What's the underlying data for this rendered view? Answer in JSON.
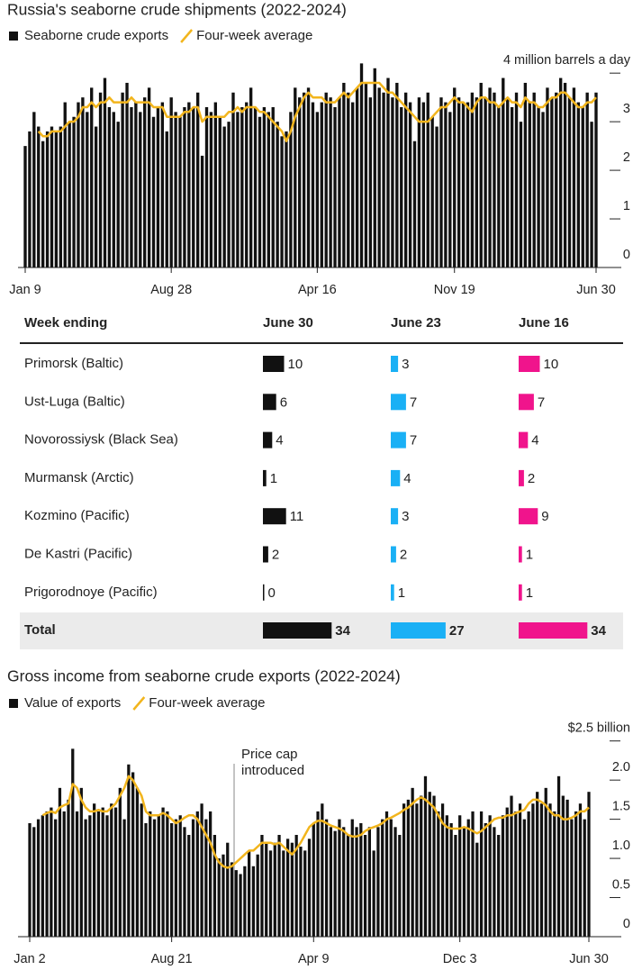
{
  "chart_data": [
    {
      "type": "bar",
      "title": "Russia's seaborne crude shipments (2022-2024)",
      "categories": [
        "Jan 9",
        null,
        null,
        null,
        null,
        null,
        null,
        null,
        null,
        null,
        null,
        null,
        null,
        null,
        null,
        null,
        null,
        null,
        null,
        null,
        null,
        null,
        null,
        null,
        null,
        null,
        null,
        null,
        null,
        null,
        null,
        null,
        null,
        "Aug 28",
        null,
        null,
        null,
        null,
        null,
        null,
        null,
        null,
        null,
        null,
        null,
        null,
        null,
        null,
        null,
        null,
        null,
        null,
        null,
        null,
        null,
        null,
        null,
        null,
        null,
        null,
        null,
        null,
        null,
        null,
        null,
        null,
        "Apr 16",
        null,
        null,
        null,
        null,
        null,
        null,
        null,
        null,
        null,
        null,
        null,
        null,
        null,
        null,
        null,
        null,
        null,
        null,
        null,
        null,
        null,
        null,
        null,
        null,
        null,
        null,
        null,
        null,
        null,
        null,
        "Nov 19",
        null,
        null,
        null,
        null,
        null,
        null,
        null,
        null,
        null,
        null,
        null,
        null,
        null,
        null,
        null,
        null,
        null,
        null,
        null,
        null,
        null,
        null,
        null,
        null,
        null,
        null,
        null,
        null,
        null,
        null,
        null,
        "Jun 30"
      ],
      "series": [
        {
          "name": "Seaborne crude exports",
          "type": "bar",
          "color": "#111111",
          "values": [
            2.5,
            2.8,
            3.2,
            2.9,
            2.6,
            2.8,
            2.9,
            2.8,
            2.9,
            3.4,
            3.0,
            3.1,
            3.4,
            3.5,
            3.2,
            3.7,
            2.9,
            3.6,
            3.9,
            3.3,
            3.2,
            3.0,
            3.6,
            3.8,
            3.3,
            3.4,
            3.2,
            3.5,
            3.7,
            3.1,
            3.3,
            3.4,
            2.8,
            3.5,
            3.2,
            3.1,
            3.3,
            3.4,
            3.3,
            3.6,
            2.3,
            3.3,
            3.2,
            3.4,
            3.1,
            2.9,
            3.0,
            3.6,
            3.2,
            3.3,
            3.4,
            3.7,
            3.3,
            3.1,
            3.3,
            3.2,
            3.3,
            3.0,
            2.7,
            2.8,
            3.2,
            3.7,
            3.5,
            3.6,
            3.7,
            3.4,
            3.2,
            3.4,
            3.6,
            3.5,
            3.3,
            3.5,
            3.8,
            3.6,
            3.4,
            3.7,
            4.2,
            3.8,
            3.5,
            4.1,
            3.7,
            3.6,
            3.9,
            3.5,
            3.8,
            3.3,
            3.6,
            3.4,
            2.6,
            3.5,
            3.4,
            3.6,
            3.1,
            2.9,
            3.5,
            3.4,
            3.2,
            3.7,
            3.5,
            3.4,
            3.4,
            3.6,
            3.5,
            3.8,
            3.5,
            3.7,
            3.6,
            3.3,
            3.9,
            3.5,
            3.3,
            3.6,
            3.0,
            3.8,
            3.4,
            3.6,
            3.3,
            3.2,
            3.7,
            3.5,
            3.6,
            3.9,
            3.8,
            3.5,
            3.7,
            3.4,
            3.3,
            3.6,
            3.0,
            3.6
          ]
        },
        {
          "name": "Four-week average",
          "type": "line",
          "color": "#f2b51d",
          "values": [
            null,
            null,
            null,
            2.8,
            2.7,
            2.7,
            2.8,
            2.8,
            2.8,
            2.9,
            3.0,
            3.0,
            3.1,
            3.3,
            3.3,
            3.4,
            3.3,
            3.4,
            3.4,
            3.5,
            3.4,
            3.4,
            3.4,
            3.4,
            3.5,
            3.4,
            3.4,
            3.4,
            3.4,
            3.3,
            3.3,
            3.3,
            3.1,
            3.1,
            3.1,
            3.1,
            3.2,
            3.2,
            3.3,
            3.3,
            3.0,
            3.1,
            3.1,
            3.1,
            3.1,
            3.1,
            3.2,
            3.2,
            3.3,
            3.2,
            3.3,
            3.3,
            3.3,
            3.2,
            3.2,
            3.1,
            3.0,
            2.9,
            2.8,
            2.6,
            2.8,
            3.1,
            3.3,
            3.5,
            3.6,
            3.5,
            3.5,
            3.5,
            3.4,
            3.4,
            3.4,
            3.5,
            3.6,
            3.5,
            3.6,
            3.7,
            3.8,
            3.8,
            3.8,
            3.8,
            3.8,
            3.7,
            3.6,
            3.6,
            3.5,
            3.4,
            3.3,
            3.2,
            3.1,
            3.0,
            3.0,
            3.0,
            3.1,
            3.2,
            3.3,
            3.3,
            3.4,
            3.5,
            3.4,
            3.4,
            3.3,
            3.2,
            3.4,
            3.5,
            3.5,
            3.4,
            3.4,
            3.3,
            3.4,
            3.5,
            3.4,
            3.4,
            3.3,
            3.5,
            3.4,
            3.4,
            3.3,
            3.3,
            3.4,
            3.5,
            3.5,
            3.6,
            3.6,
            3.5,
            3.4,
            3.3,
            3.3,
            3.4,
            3.4,
            3.5
          ]
        }
      ],
      "ylim": [
        0,
        4.3
      ],
      "yticks": [
        0,
        1,
        2,
        3,
        {
          "value": 4,
          "label": "4 million barrels a day"
        }
      ]
    },
    {
      "type": "bar",
      "title": "Gross income from seaborne crude exports (2022-2024)",
      "annotation": "Price cap introduced",
      "categories": [
        "Jan 2",
        null,
        null,
        null,
        null,
        null,
        null,
        null,
        null,
        null,
        null,
        null,
        null,
        null,
        null,
        null,
        null,
        null,
        null,
        null,
        null,
        null,
        null,
        null,
        null,
        null,
        null,
        null,
        null,
        null,
        null,
        null,
        null,
        "Aug 21",
        null,
        null,
        null,
        null,
        null,
        null,
        null,
        null,
        null,
        null,
        null,
        null,
        null,
        null,
        null,
        null,
        null,
        null,
        null,
        null,
        null,
        null,
        null,
        null,
        null,
        null,
        null,
        null,
        null,
        null,
        null,
        null,
        "Apr 9",
        null,
        null,
        null,
        null,
        null,
        null,
        null,
        null,
        null,
        null,
        null,
        null,
        null,
        null,
        null,
        null,
        null,
        null,
        null,
        null,
        null,
        null,
        null,
        null,
        null,
        null,
        null,
        null,
        null,
        null,
        null,
        null,
        null,
        "Dec 3",
        null,
        null,
        null,
        null,
        null,
        null,
        null,
        null,
        null,
        null,
        null,
        null,
        null,
        null,
        null,
        null,
        null,
        null,
        null,
        null,
        null,
        null,
        null,
        null,
        null,
        null,
        null,
        null,
        null,
        "Jun 30"
      ],
      "series": [
        {
          "name": "Value of exports",
          "type": "bar",
          "color": "#111111",
          "values": [
            1.45,
            1.4,
            1.5,
            1.55,
            1.6,
            1.65,
            1.5,
            1.9,
            1.6,
            1.75,
            2.4,
            1.6,
            1.9,
            1.5,
            1.55,
            1.7,
            1.6,
            1.65,
            1.55,
            1.7,
            1.65,
            1.9,
            1.5,
            2.2,
            2.1,
            1.9,
            1.7,
            1.45,
            1.6,
            1.5,
            1.55,
            1.65,
            1.6,
            1.45,
            1.5,
            1.55,
            1.4,
            1.3,
            1.5,
            1.6,
            1.7,
            1.5,
            1.6,
            1.3,
            1.0,
            1.05,
            1.2,
            0.95,
            0.85,
            0.8,
            0.9,
            1.1,
            0.9,
            1.05,
            1.3,
            1.2,
            1.1,
            1.2,
            1.3,
            1.1,
            1.25,
            1.2,
            1.3,
            1.15,
            1.1,
            1.25,
            1.45,
            1.6,
            1.7,
            1.5,
            1.4,
            1.35,
            1.5,
            1.4,
            1.3,
            1.5,
            1.4,
            1.45,
            1.3,
            1.4,
            1.1,
            1.4,
            1.5,
            1.6,
            1.5,
            1.4,
            1.3,
            1.7,
            1.75,
            1.9,
            1.7,
            1.8,
            2.05,
            1.85,
            1.8,
            1.6,
            1.7,
            1.55,
            1.45,
            1.3,
            1.55,
            1.4,
            1.5,
            1.6,
            1.2,
            1.6,
            1.45,
            1.55,
            1.4,
            1.3,
            1.55,
            1.65,
            1.8,
            1.6,
            1.7,
            1.5,
            1.6,
            1.7,
            1.85,
            1.7,
            1.9,
            1.7,
            1.6,
            2.05,
            1.8,
            1.75,
            1.5,
            1.6,
            1.7,
            1.5,
            1.85
          ]
        },
        {
          "name": "Four-week average",
          "type": "line",
          "color": "#f2b51d",
          "values": [
            null,
            null,
            null,
            1.55,
            1.58,
            1.6,
            1.58,
            1.65,
            1.68,
            1.7,
            1.95,
            1.9,
            1.75,
            1.65,
            1.6,
            1.6,
            1.62,
            1.6,
            1.6,
            1.65,
            1.7,
            1.8,
            1.9,
            2.05,
            2.0,
            1.9,
            1.8,
            1.6,
            1.55,
            1.55,
            1.55,
            1.58,
            1.55,
            1.5,
            1.45,
            1.48,
            1.52,
            1.55,
            1.55,
            1.5,
            1.4,
            1.3,
            1.2,
            1.05,
            0.95,
            0.9,
            0.88,
            0.9,
            0.95,
            1.0,
            1.05,
            1.1,
            1.1,
            1.15,
            1.2,
            1.2,
            1.2,
            1.18,
            1.2,
            1.15,
            1.1,
            1.05,
            1.12,
            1.2,
            1.3,
            1.4,
            1.45,
            1.48,
            1.48,
            1.45,
            1.42,
            1.4,
            1.38,
            1.35,
            1.3,
            1.28,
            1.28,
            1.3,
            1.35,
            1.38,
            1.4,
            1.42,
            1.45,
            1.5,
            1.52,
            1.55,
            1.58,
            1.62,
            1.65,
            1.7,
            1.75,
            1.78,
            1.75,
            1.7,
            1.65,
            1.55,
            1.45,
            1.4,
            1.38,
            1.38,
            1.38,
            1.4,
            1.38,
            1.35,
            1.32,
            1.35,
            1.4,
            1.45,
            1.5,
            1.52,
            1.52,
            1.55,
            1.55,
            1.58,
            1.6,
            1.62,
            1.7,
            1.75,
            1.75,
            1.72,
            1.68,
            1.6,
            1.55,
            1.55,
            1.5,
            1.5,
            1.52,
            1.55,
            1.6,
            1.6,
            1.65
          ]
        }
      ],
      "ylim": [
        0,
        2.6
      ],
      "yticks": [
        0,
        0.5,
        {
          "value": 1,
          "label": "1.0"
        },
        1.5,
        {
          "value": 2,
          "label": "2.0"
        },
        {
          "value": 2.5,
          "label": "$2.5 billion"
        }
      ]
    }
  ],
  "table": {
    "header": "Week ending",
    "columns": [
      {
        "name": "June 30",
        "color": "#111111"
      },
      {
        "name": "June 23",
        "color": "#1ab0f5"
      },
      {
        "name": "June 16",
        "color": "#f0148c"
      }
    ],
    "rows": [
      {
        "label": "Primorsk (Baltic)",
        "values": [
          10,
          3,
          10
        ]
      },
      {
        "label": "Ust-Luga (Baltic)",
        "values": [
          6,
          7,
          7
        ]
      },
      {
        "label": "Novorossiysk (Black Sea)",
        "values": [
          4,
          7,
          4
        ]
      },
      {
        "label": "Murmansk (Arctic)",
        "values": [
          1,
          4,
          2
        ]
      },
      {
        "label": "Kozmino (Pacific)",
        "values": [
          11,
          3,
          9
        ]
      },
      {
        "label": "De Kastri (Pacific)",
        "values": [
          2,
          2,
          1
        ]
      },
      {
        "label": "Prigorodnoye (Pacific)",
        "values": [
          0,
          1,
          1
        ]
      }
    ],
    "total": {
      "label": "Total",
      "values": [
        34,
        27,
        34
      ]
    }
  }
}
